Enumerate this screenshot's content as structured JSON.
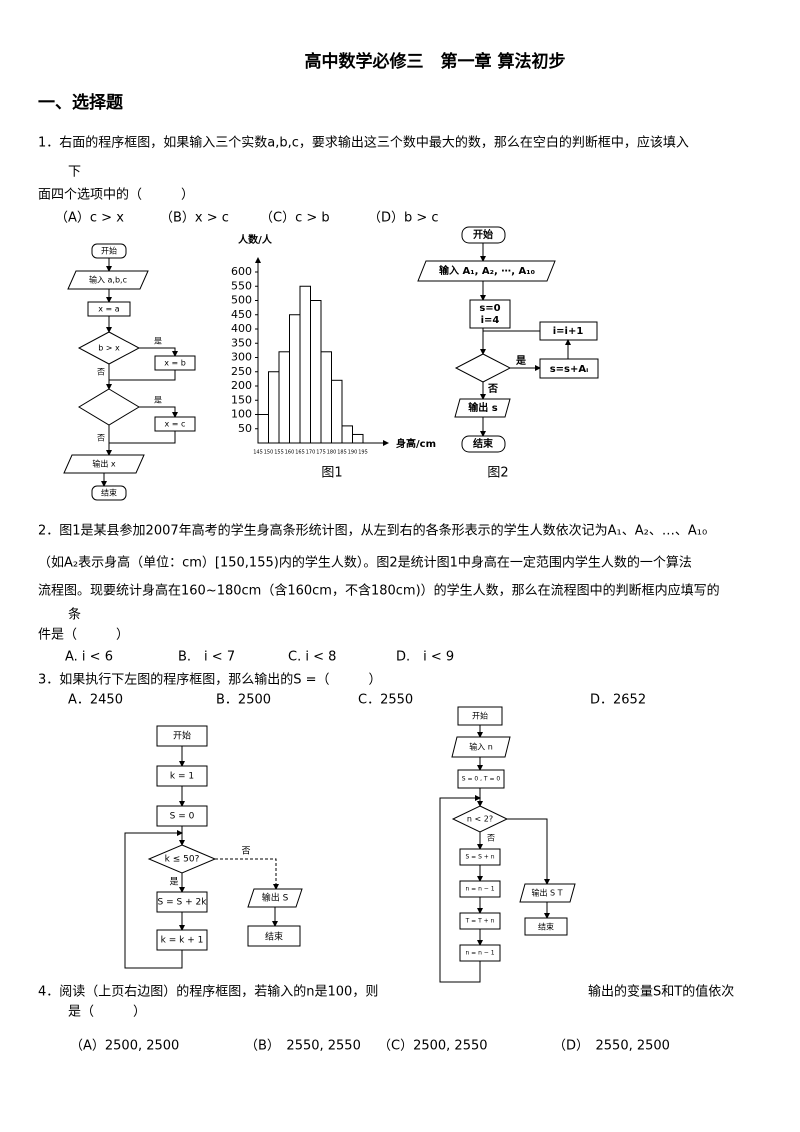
{
  "title": "高中数学必修三　第一章 算法初步",
  "section": "一、选择题",
  "questions": [
    {
      "lines": [
        "1．右面的程序框图，如果输入三个实数a,b,c，要求输出这三个数中最大的数，那么在空白的判断框中，应该填入",
        "下",
        "面四个选项中的（　　　）"
      ],
      "options": [
        "（A）c > x",
        "（B）x > c",
        "（C）c > b",
        "（D）b > c"
      ]
    },
    {
      "lines": [
        "2．图1是某县参加2007年高考的学生身高条形统计图，从左到右的各条形表示的学生人数依次记为A₁、A₂、…、A₁₀",
        "（如A₂表示身高（单位：cm）[150,155)内的学生人数）。图2是统计图1中身高在一定范围内学生人数的一个算法",
        "流程图。现要统计身高在160~180cm（含160cm，不含180cm)）的学生人数，那么在流程图中的判断框内应填写的",
        "条",
        "件是（　　　）"
      ],
      "options": [
        "A. i < 6",
        "B.　i < 7",
        "C. i < 8",
        "D.　i < 9"
      ]
    },
    {
      "lines": [
        "3．如果执行下左图的程序框图，那么输出的S =（　　　）"
      ],
      "options": [
        "A．2450",
        "B．2500",
        "C．2550",
        "D．2652"
      ]
    },
    {
      "lines": [
        "4．阅读（上页右边图）的程序框图，若输入的n是100，则",
        "输出的变量S和T的值依次",
        "是（　　　）"
      ],
      "options": [
        "（A）2500, 2500",
        "（B）　2550, 2550",
        "（C）2500, 2550",
        "（D）　2550, 2500"
      ]
    }
  ],
  "flowchart1": {
    "nodes": [
      "开始",
      "输入 a,b,c",
      "x = a",
      "b > x",
      "是",
      "x = b",
      "否",
      "是",
      "x = c",
      "否",
      "输出 x",
      "结束"
    ]
  },
  "flowchart2": {
    "nodes": [
      "开始",
      "输入 A₁, A₂, ⋯, A₁₀",
      "s=0",
      "i=4",
      "i=i+1",
      "是",
      "s=s+Aᵢ",
      "否",
      "输出 s",
      "结束"
    ],
    "caption": "图2"
  },
  "flowchart3": {
    "nodes": [
      "开始",
      "k = 1",
      "S = 0",
      "k ≤ 50?",
      "否",
      "是",
      "S = S + 2k",
      "k = k + 1",
      "输出 S",
      "结束"
    ]
  },
  "flowchart4": {
    "nodes": [
      "开始",
      "输入 n",
      "S = 0 , T = 0",
      "n < 2?",
      "否",
      "S = S + n",
      "n = n − 1",
      "T = T + n",
      "n = n − 1",
      "输出 S  T",
      "结束"
    ]
  },
  "chart_data": {
    "type": "histogram",
    "ylabel": "人数/人",
    "xlabel": "身高/cm",
    "caption": "图1",
    "bins": [
      145,
      150,
      155,
      160,
      165,
      170,
      175,
      180,
      185,
      190,
      195
    ],
    "values": [
      100,
      250,
      320,
      450,
      550,
      500,
      320,
      220,
      60,
      30
    ],
    "color": "#ffffff",
    "xlim": [
      145,
      195
    ],
    "ylim": [
      0,
      600
    ],
    "yticks": [
      50,
      100,
      150,
      200,
      250,
      300,
      350,
      400,
      450,
      500,
      550,
      600
    ]
  }
}
